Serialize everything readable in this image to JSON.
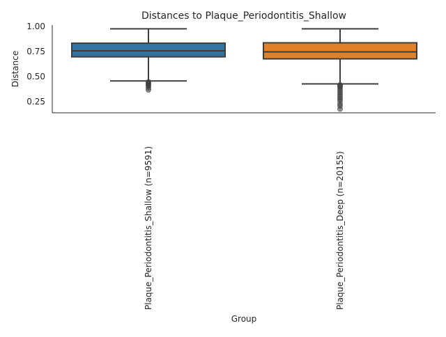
{
  "chart_data": {
    "type": "box",
    "title": "Distances to Plaque_Periodontitis_Shallow",
    "xlabel": "Group",
    "ylabel": "Distance",
    "ylim": [
      0.13,
      1.0
    ],
    "yticks": [
      "0.25",
      "0.50",
      "0.75",
      "1.00"
    ],
    "grid": false,
    "categories": [
      "Plaque_Periodontitis_Shallow (n=9591)",
      "Plaque_Periodontitis_Deep (n=20155)"
    ],
    "series": [
      {
        "name": "Plaque_Periodontitis_Shallow (n=9591)",
        "color": "#3274a1",
        "whisker_low": 0.45,
        "q1": 0.69,
        "median": 0.75,
        "q3": 0.826,
        "whisker_high": 0.97,
        "outliers": [
          0.44,
          0.43,
          0.42,
          0.41,
          0.4,
          0.38,
          0.36
        ]
      },
      {
        "name": "Plaque_Periodontitis_Deep (n=20155)",
        "color": "#e1812c",
        "whisker_low": 0.42,
        "q1": 0.67,
        "median": 0.74,
        "q3": 0.83,
        "whisker_high": 0.97,
        "outliers": [
          0.41,
          0.4,
          0.39,
          0.37,
          0.35,
          0.33,
          0.31,
          0.29,
          0.27,
          0.25,
          0.22,
          0.2,
          0.17
        ]
      }
    ]
  }
}
